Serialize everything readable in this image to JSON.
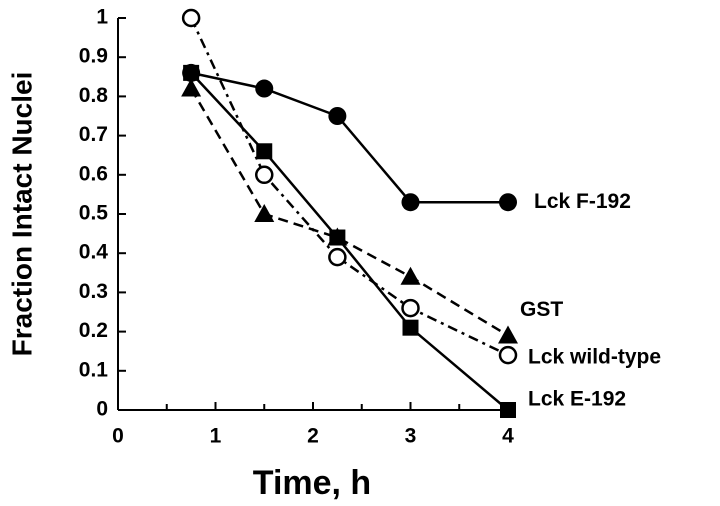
{
  "chart_data": {
    "type": "line",
    "x_label": "Time, h",
    "y_label": "Fraction Intact Nuclei",
    "xlim": [
      0,
      4
    ],
    "xticks": [
      0,
      1,
      2,
      3,
      4
    ],
    "ylim": [
      0,
      1
    ],
    "yticks": [
      0,
      0.1,
      0.2,
      0.3,
      0.4,
      0.5,
      0.6,
      0.7,
      0.8,
      0.9,
      1
    ],
    "x": [
      0.75,
      1.5,
      2.25,
      3,
      4
    ],
    "series": [
      {
        "name": "Lck F-192",
        "color": "#000000",
        "marker": "filled-circle",
        "line_style": "solid",
        "values": [
          0.86,
          0.82,
          0.75,
          0.53,
          0.53
        ]
      },
      {
        "name": "GST",
        "color": "#000000",
        "marker": "filled-triangle",
        "line_style": "dashed",
        "values": [
          0.82,
          0.5,
          0.44,
          0.34,
          0.19
        ]
      },
      {
        "name": "Lck wild-type",
        "color": "#000000",
        "marker": "open-circle",
        "line_style": "dash-dot",
        "values": [
          1.0,
          0.6,
          0.39,
          0.26,
          0.14
        ]
      },
      {
        "name": "Lck E-192",
        "color": "#000000",
        "marker": "filled-square",
        "line_style": "solid",
        "values": [
          0.86,
          0.66,
          0.44,
          0.21,
          0
        ]
      }
    ]
  }
}
